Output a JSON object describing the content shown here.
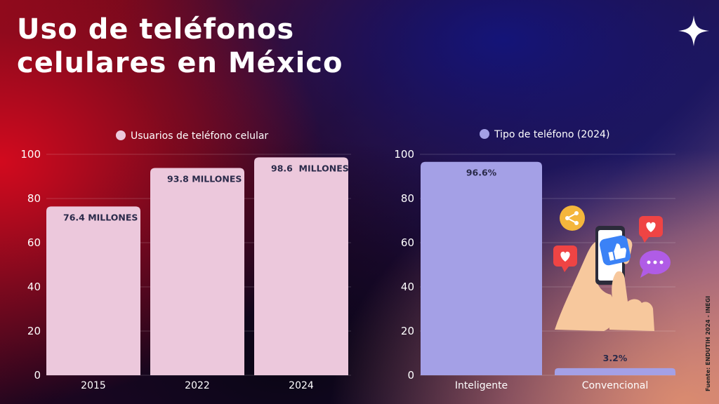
{
  "title": {
    "line1": "Uso de teléfonos",
    "line2": "celulares en México"
  },
  "source": "Fuente: ENDUTIH 2024 - INEGI",
  "icons": [
    "sparkle-icon",
    "phone-hand-illustration",
    "share-icon",
    "heart-icon",
    "like-icon",
    "chat-dots-icon"
  ],
  "chart_data": [
    {
      "type": "bar",
      "legend": "Usuarios de teléfono celular",
      "legend_placement": "top",
      "categories": [
        "2015",
        "2022",
        "2024"
      ],
      "values": [
        76.4,
        93.8,
        98.6
      ],
      "data_labels": [
        "76.4 MILLONES",
        "93.8 MILLONES",
        "98.6  MILLONES"
      ],
      "yticks": [
        0,
        20,
        40,
        60,
        80,
        100
      ],
      "ylim": [
        0,
        100
      ],
      "grid": true,
      "color": "#ecc8dc"
    },
    {
      "type": "bar",
      "legend": "Tipo de teléfono (2024)",
      "legend_placement": "top",
      "categories": [
        "Inteligente",
        "Convencional"
      ],
      "values": [
        96.6,
        3.2
      ],
      "data_labels": [
        "96.6%",
        "3.2%"
      ],
      "yticks": [
        0,
        20,
        40,
        60,
        80,
        100
      ],
      "ylim": [
        0,
        100
      ],
      "grid": true,
      "color": "#a4a0e6"
    }
  ]
}
